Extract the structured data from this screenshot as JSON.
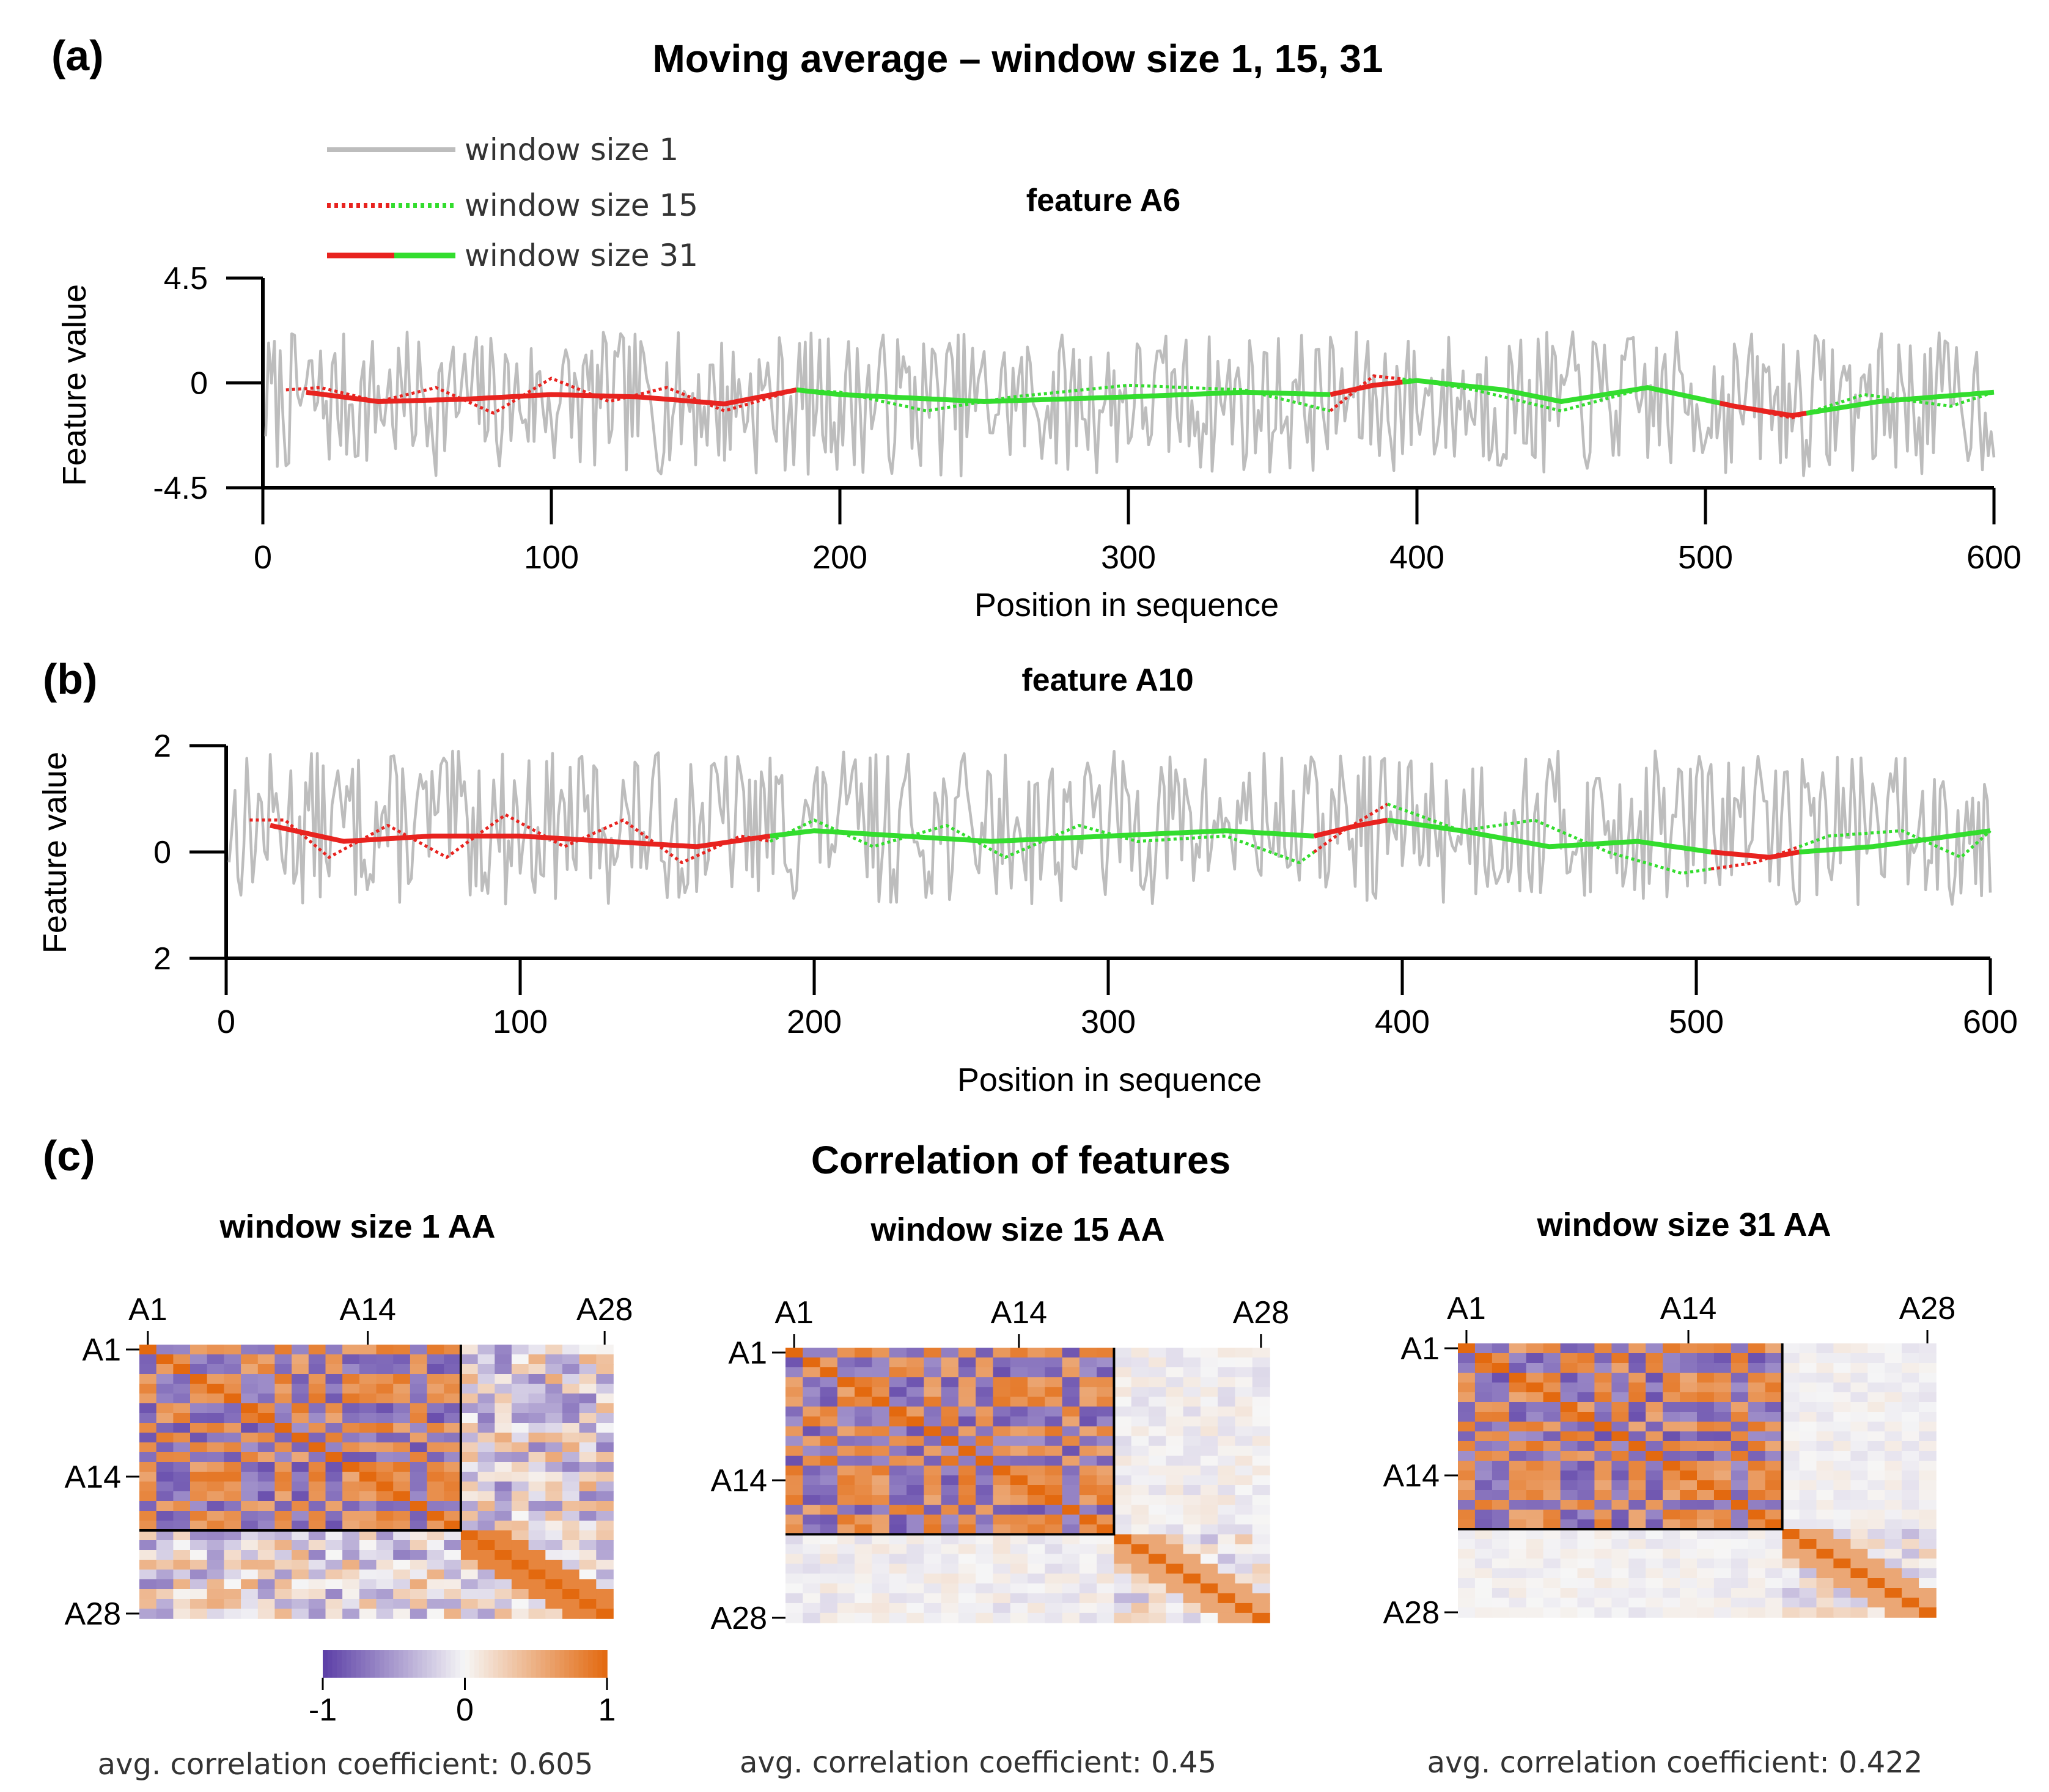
{
  "panel_labels": {
    "a": "(a)",
    "b": "(b)",
    "c": "(c)"
  },
  "figure_title": "Moving average – window size 1, 15, 31",
  "legend": {
    "items": [
      {
        "label": "window size 1",
        "style": "solid",
        "colors": [
          "#bdbdbd"
        ]
      },
      {
        "label": "window size 15",
        "style": "dotted",
        "colors": [
          "#e8231f",
          "#33dd2e"
        ]
      },
      {
        "label": "window size 31",
        "style": "solid",
        "colors": [
          "#e8231f",
          "#33dd2e"
        ]
      }
    ]
  },
  "colors": {
    "raw": "#bdbdbd",
    "red": "#e8231f",
    "green": "#33dd2e",
    "neg": "#5b3ea6",
    "mid": "#f6f6f6",
    "pos": "#e3690f"
  },
  "chart_data": [
    {
      "type": "line",
      "title": "feature A6",
      "xlabel": "Position in sequence",
      "ylabel": "Feature value",
      "xlim": [
        0,
        600
      ],
      "ylim": [
        -4.5,
        4.5
      ],
      "xticks": [
        "0",
        "100",
        "200",
        "300",
        "400",
        "500",
        "600"
      ],
      "yticks": [
        "4.5",
        "0",
        "-4.5"
      ],
      "raw_series": {
        "name": "window size 1",
        "length": 600,
        "range": [
          -4.0,
          2.2
        ],
        "mean": -0.6
      },
      "smooth_series": [
        {
          "name": "window size 15",
          "style": "dotted",
          "x": [
            8,
            20,
            40,
            60,
            80,
            100,
            120,
            140,
            160,
            185,
            200,
            230,
            260,
            300,
            340,
            370,
            385,
            400,
            420,
            450,
            480,
            510,
            530,
            555,
            585,
            600
          ],
          "y": [
            -0.3,
            -0.2,
            -0.8,
            -0.2,
            -1.3,
            0.2,
            -0.8,
            -0.2,
            -1.2,
            -0.3,
            -0.4,
            -1.2,
            -0.6,
            -0.1,
            -0.3,
            -1.2,
            0.3,
            0.1,
            -0.3,
            -1.2,
            -0.2,
            -1.0,
            -1.5,
            -0.5,
            -1.0,
            -0.4
          ]
        },
        {
          "name": "window size 31",
          "style": "solid",
          "x": [
            15,
            40,
            70,
            100,
            130,
            160,
            185,
            200,
            250,
            300,
            340,
            370,
            385,
            400,
            430,
            450,
            480,
            510,
            530,
            560,
            600
          ],
          "y": [
            -0.4,
            -0.8,
            -0.7,
            -0.5,
            -0.6,
            -0.9,
            -0.3,
            -0.5,
            -0.8,
            -0.6,
            -0.4,
            -0.5,
            -0.1,
            0.1,
            -0.3,
            -0.8,
            -0.2,
            -1.0,
            -1.4,
            -0.8,
            -0.4
          ]
        }
      ],
      "segment_colors": [
        {
          "from": 0,
          "to": 185,
          "color": "red"
        },
        {
          "from": 185,
          "to": 370,
          "color": "green"
        },
        {
          "from": 370,
          "to": 395,
          "color": "red"
        },
        {
          "from": 395,
          "to": 505,
          "color": "green"
        },
        {
          "from": 505,
          "to": 535,
          "color": "red"
        },
        {
          "from": 535,
          "to": 600,
          "color": "green"
        }
      ]
    },
    {
      "type": "line",
      "title": "feature A10",
      "xlabel": "Position in sequence",
      "ylabel": "Feature value",
      "xlim": [
        0,
        600
      ],
      "ylim": [
        -2,
        2
      ],
      "xticks": [
        "0",
        "100",
        "200",
        "300",
        "400",
        "500",
        "600"
      ],
      "yticks": [
        "2",
        "0",
        "2"
      ],
      "raw_series": {
        "name": "window size 1",
        "length": 600,
        "range": [
          -1.0,
          1.9
        ],
        "mean": 0.2
      },
      "smooth_series": [
        {
          "name": "window size 15",
          "style": "dotted",
          "x": [
            8,
            20,
            35,
            55,
            75,
            95,
            115,
            135,
            155,
            175,
            185,
            200,
            220,
            245,
            265,
            290,
            310,
            340,
            365,
            380,
            395,
            420,
            445,
            470,
            495,
            520,
            545,
            570,
            590,
            600
          ],
          "y": [
            0.6,
            0.6,
            -0.1,
            0.5,
            -0.1,
            0.7,
            0.1,
            0.6,
            -0.2,
            0.3,
            0.2,
            0.6,
            0.1,
            0.5,
            -0.1,
            0.5,
            0.2,
            0.3,
            -0.2,
            0.4,
            0.9,
            0.4,
            0.6,
            0.0,
            -0.4,
            -0.2,
            0.3,
            0.4,
            -0.1,
            0.4
          ]
        },
        {
          "name": "window size 31",
          "style": "solid",
          "x": [
            15,
            40,
            70,
            100,
            130,
            160,
            185,
            200,
            230,
            260,
            300,
            340,
            370,
            385,
            395,
            420,
            450,
            480,
            505,
            525,
            535,
            560,
            600
          ],
          "y": [
            0.5,
            0.2,
            0.3,
            0.3,
            0.2,
            0.1,
            0.3,
            0.4,
            0.3,
            0.2,
            0.3,
            0.4,
            0.3,
            0.5,
            0.6,
            0.4,
            0.1,
            0.2,
            0.0,
            -0.1,
            0.0,
            0.1,
            0.4
          ]
        }
      ],
      "segment_colors": [
        {
          "from": 0,
          "to": 185,
          "color": "red"
        },
        {
          "from": 185,
          "to": 370,
          "color": "green"
        },
        {
          "from": 370,
          "to": 395,
          "color": "red"
        },
        {
          "from": 395,
          "to": 505,
          "color": "green"
        },
        {
          "from": 505,
          "to": 535,
          "color": "red"
        },
        {
          "from": 535,
          "to": 600,
          "color": "green"
        }
      ]
    },
    {
      "type": "heatmap",
      "title": "window size 1 AA",
      "n": 28,
      "block": 19,
      "xticks": [
        "A1",
        "A14",
        "A28"
      ],
      "yticks": [
        "A1",
        "A14",
        "A28"
      ],
      "colorscale": {
        "min": -1,
        "max": 1,
        "ticks": [
          "-1",
          "0",
          "1"
        ]
      },
      "off_block_strength": 0.6,
      "caption": "avg. correlation coefficient: 0.605"
    },
    {
      "type": "heatmap",
      "title": "window size 15 AA",
      "n": 28,
      "block": 19,
      "xticks": [
        "A1",
        "A14",
        "A28"
      ],
      "yticks": [
        "A1",
        "A14",
        "A28"
      ],
      "colorscale": {
        "min": -1,
        "max": 1
      },
      "off_block_strength": 0.15,
      "caption": "avg. correlation coefficient: 0.45"
    },
    {
      "type": "heatmap",
      "title": "window size 31 AA",
      "n": 28,
      "block": 19,
      "xticks": [
        "A1",
        "A14",
        "A28"
      ],
      "yticks": [
        "A1",
        "A14",
        "A28"
      ],
      "colorscale": {
        "min": -1,
        "max": 1
      },
      "off_block_strength": 0.1,
      "caption": "avg. correlation coefficient: 0.422"
    }
  ],
  "section_c_title": "Correlation of features"
}
